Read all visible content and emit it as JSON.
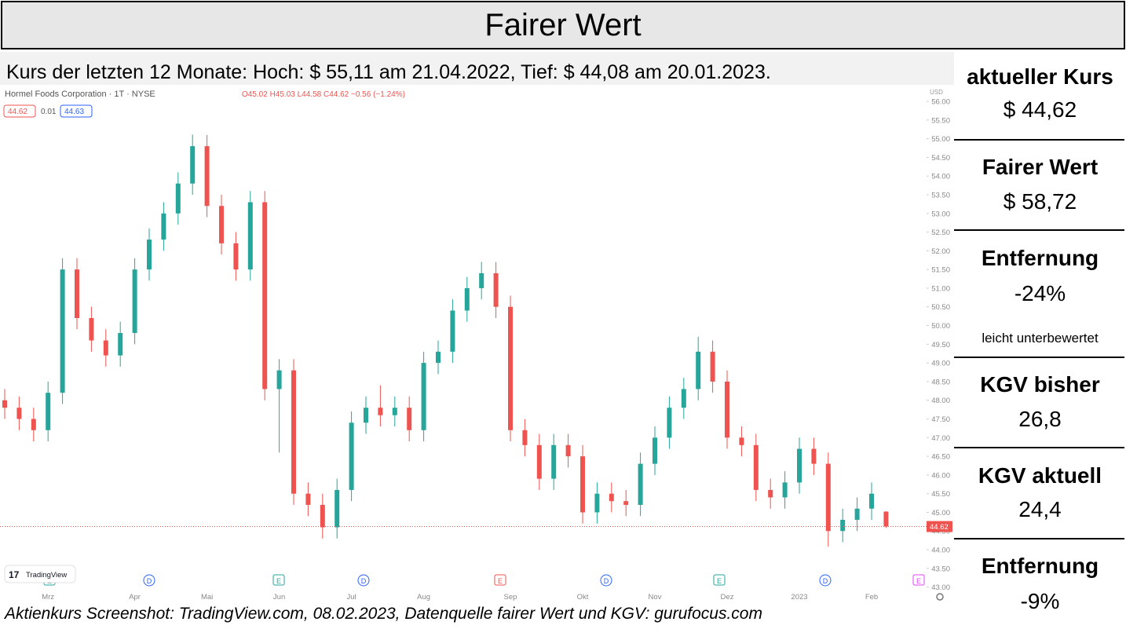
{
  "header": {
    "title": "Fairer Wert",
    "subtitle": "Kurs der letzten 12 Monate: Hoch: $ 55,11 am 21.04.2022, Tief: $ 44,08 am 20.01.2023."
  },
  "chart_data": {
    "type": "candlestick",
    "title": "Hormel Foods Corporation · 1T · NYSE",
    "legend_text": "O45.02 H45.03 L44.58 C44.62 −0.56 (−1.24%)",
    "bid": 44.62,
    "spread": 0.01,
    "ask": 44.63,
    "currency": "USD",
    "brand": "TradingView",
    "up_color": "#26a69a",
    "down_color": "#ef5350",
    "categories": [
      null,
      null,
      null,
      "Mrz",
      null,
      null,
      null,
      null,
      null,
      "Apr",
      null,
      null,
      null,
      null,
      "Mai",
      null,
      null,
      null,
      null,
      "Jun",
      null,
      null,
      null,
      null,
      "Jul",
      null,
      null,
      null,
      null,
      "Aug",
      null,
      null,
      null,
      null,
      null,
      "Sep",
      null,
      null,
      null,
      null,
      "Okt",
      null,
      null,
      null,
      null,
      "Nov",
      null,
      null,
      null,
      null,
      "Dez",
      null,
      null,
      null,
      null,
      "2023",
      null,
      null,
      null,
      null,
      "Feb",
      null
    ],
    "open": [
      48.0,
      47.8,
      47.5,
      47.2,
      48.2,
      51.5,
      50.2,
      49.6,
      49.2,
      49.8,
      51.5,
      52.3,
      53.0,
      53.8,
      54.8,
      53.2,
      52.2,
      51.5,
      53.3,
      48.3,
      48.8,
      45.5,
      45.2,
      44.6,
      45.6,
      47.4,
      47.8,
      47.6,
      47.8,
      47.2,
      49.0,
      49.3,
      50.4,
      51.0,
      51.4,
      50.5,
      47.2,
      46.8,
      45.9,
      46.8,
      46.5,
      45.0,
      45.5,
      45.3,
      45.2,
      46.3,
      47.0,
      47.8,
      48.3,
      49.3,
      48.5,
      47.0,
      46.8,
      45.6,
      45.4,
      45.8,
      46.7,
      46.3,
      44.5,
      44.8,
      45.1,
      45.02
    ],
    "high": [
      48.3,
      48.1,
      47.8,
      48.5,
      51.8,
      51.8,
      50.5,
      49.9,
      50.1,
      51.8,
      52.6,
      53.3,
      54.1,
      55.11,
      55.1,
      53.5,
      52.5,
      53.6,
      53.6,
      49.1,
      49.1,
      45.8,
      45.5,
      45.9,
      47.7,
      48.1,
      48.4,
      48.1,
      48.1,
      49.3,
      49.6,
      50.7,
      51.3,
      51.7,
      51.7,
      50.8,
      47.5,
      47.1,
      47.1,
      47.1,
      46.8,
      45.8,
      45.8,
      45.6,
      46.6,
      47.3,
      48.1,
      48.6,
      49.7,
      49.6,
      48.8,
      47.3,
      47.1,
      45.9,
      46.1,
      47.0,
      47.0,
      46.6,
      45.1,
      45.4,
      45.8,
      45.03
    ],
    "low": [
      47.5,
      47.2,
      46.9,
      46.9,
      47.9,
      49.9,
      49.3,
      48.9,
      48.9,
      49.5,
      51.2,
      52.0,
      52.7,
      53.5,
      52.9,
      51.9,
      51.2,
      51.2,
      48.0,
      46.6,
      45.2,
      44.9,
      44.3,
      44.3,
      45.3,
      47.1,
      47.3,
      47.3,
      46.9,
      46.9,
      48.7,
      49.0,
      50.1,
      50.7,
      50.2,
      46.9,
      46.5,
      45.6,
      45.6,
      46.2,
      44.7,
      44.7,
      45.0,
      44.9,
      44.9,
      46.0,
      46.7,
      47.5,
      48.0,
      48.2,
      46.7,
      46.5,
      45.3,
      45.1,
      45.1,
      45.5,
      46.0,
      44.08,
      44.2,
      44.5,
      44.8,
      44.58
    ],
    "close": [
      47.8,
      47.5,
      47.2,
      48.2,
      51.5,
      50.2,
      49.6,
      49.2,
      49.8,
      51.5,
      52.3,
      53.0,
      53.8,
      54.8,
      53.2,
      52.2,
      51.5,
      53.3,
      48.3,
      48.8,
      45.5,
      45.2,
      44.6,
      45.6,
      47.4,
      47.8,
      47.6,
      47.8,
      47.2,
      49.0,
      49.3,
      50.4,
      51.0,
      51.4,
      50.5,
      47.2,
      46.8,
      45.9,
      46.8,
      46.5,
      45.0,
      45.5,
      45.3,
      45.2,
      46.3,
      47.0,
      47.8,
      48.3,
      49.3,
      48.5,
      47.0,
      46.8,
      45.6,
      45.4,
      45.8,
      46.7,
      46.3,
      44.5,
      44.8,
      45.1,
      45.5,
      44.62
    ],
    "ylim": [
      42.95,
      56.4
    ],
    "yticks": [
      {
        "value": 43,
        "label": "43.00"
      },
      {
        "value": 43.5,
        "label": "43.50"
      },
      {
        "value": 44,
        "label": "44.00"
      },
      {
        "value": 44.5,
        "label": "44.50"
      },
      {
        "value": 45,
        "label": "45.00"
      },
      {
        "value": 45.5,
        "label": "45.50"
      },
      {
        "value": 46,
        "label": "46.00"
      },
      {
        "value": 46.5,
        "label": "46.50"
      },
      {
        "value": 47,
        "label": "47.00"
      },
      {
        "value": 47.5,
        "label": "47.50"
      },
      {
        "value": 48,
        "label": "48.00"
      },
      {
        "value": 48.5,
        "label": "48.50"
      },
      {
        "value": 49,
        "label": "49.00"
      },
      {
        "value": 49.5,
        "label": "49.50"
      },
      {
        "value": 50,
        "label": "50.00"
      },
      {
        "value": 50.5,
        "label": "50.50"
      },
      {
        "value": 51,
        "label": "51.00"
      },
      {
        "value": 51.5,
        "label": "51.50"
      },
      {
        "value": 52,
        "label": "52.00"
      },
      {
        "value": 52.5,
        "label": "52.50"
      },
      {
        "value": 53,
        "label": "53.00"
      },
      {
        "value": 53.5,
        "label": "53.50"
      },
      {
        "value": 54,
        "label": "54.00"
      },
      {
        "value": 54.5,
        "label": "54.50"
      },
      {
        "value": 55,
        "label": "55.00"
      },
      {
        "value": 55.5,
        "label": "55.50"
      },
      {
        "value": 56,
        "label": "56.00"
      }
    ],
    "events": [
      "E",
      "D",
      "E",
      "D",
      "E",
      "D",
      "E",
      "D",
      "E"
    ]
  },
  "sidebar": [
    {
      "label": "aktueller Kurs",
      "value": "$ 44,62"
    },
    {
      "label": "Fairer Wert",
      "value": "$ 58,72"
    },
    {
      "label": "Entfernung",
      "value": "-24%",
      "note": "leicht unterbewertet"
    },
    {
      "label": "KGV bisher",
      "value": "26,8"
    },
    {
      "label": "KGV aktuell",
      "value": "24,4"
    },
    {
      "label": "Entfernung",
      "value": "-9%"
    }
  ],
  "footer": "Aktienkurs Screenshot: TradingView.com, 08.02.2023, Datenquelle fairer Wert und KGV: gurufocus.com"
}
